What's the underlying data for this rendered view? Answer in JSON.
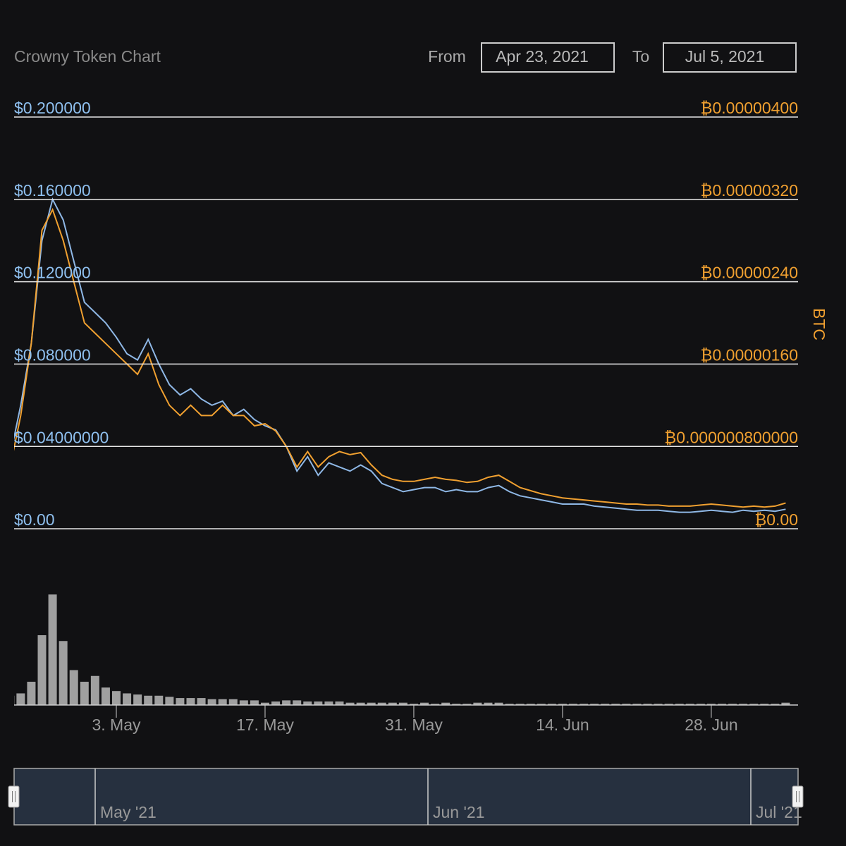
{
  "chart_data": {
    "type": "line",
    "title": "Crowny Token Chart",
    "range": {
      "from_label": "From",
      "from": "Apr 23, 2021",
      "to_label": "To",
      "to": "Jul 5, 2021"
    },
    "categories": [
      null,
      null,
      null,
      null,
      null,
      null,
      null,
      null,
      null,
      null,
      "3. May",
      null,
      null,
      null,
      null,
      null,
      null,
      null,
      null,
      null,
      null,
      null,
      null,
      null,
      "17. May",
      null,
      null,
      null,
      null,
      null,
      null,
      null,
      null,
      null,
      null,
      null,
      null,
      null,
      "31. May",
      null,
      null,
      null,
      null,
      null,
      null,
      null,
      null,
      null,
      null,
      null,
      null,
      null,
      "14. Jun",
      null,
      null,
      null,
      null,
      null,
      null,
      null,
      null,
      null,
      null,
      null,
      null,
      null,
      "28. Jun",
      null,
      null,
      null,
      null,
      null,
      null,
      null
    ],
    "series": [
      {
        "color": "#8fb8e6",
        "values": [
          0.035,
          0.06,
          0.09,
          0.14,
          0.16,
          0.15,
          0.13,
          0.11,
          0.105,
          0.1,
          0.093,
          0.085,
          0.082,
          0.092,
          0.08,
          0.07,
          0.065,
          0.068,
          0.063,
          0.06,
          0.062,
          0.055,
          0.058,
          0.053,
          0.05,
          0.048,
          0.04,
          0.028,
          0.035,
          0.026,
          0.032,
          0.03,
          0.028,
          0.031,
          0.028,
          0.022,
          0.02,
          0.018,
          0.019,
          0.02,
          0.02,
          0.018,
          0.019,
          0.018,
          0.018,
          0.02,
          0.021,
          0.018,
          0.016,
          0.015,
          0.014,
          0.013,
          0.012,
          0.012,
          0.012,
          0.011,
          0.0105,
          0.01,
          0.0095,
          0.009,
          0.009,
          0.009,
          0.0085,
          0.008,
          0.008,
          0.0085,
          0.009,
          0.0085,
          0.008,
          0.009,
          0.0085,
          0.009,
          0.0085,
          0.0095
        ]
      },
      {
        "color": "#f0a030",
        "axis": "y2",
        "values": [
          6e-07,
          1.1e-06,
          1.8e-06,
          2.9e-06,
          3.1e-06,
          2.8e-06,
          2.4e-06,
          2e-06,
          1.9e-06,
          1.8e-06,
          1.7e-06,
          1.6e-06,
          1.5e-06,
          1.7e-06,
          1.4e-06,
          1.2e-06,
          1.1e-06,
          1.2e-06,
          1.1e-06,
          1.1e-06,
          1.2e-06,
          1.1e-06,
          1.1e-06,
          1e-06,
          1.02e-06,
          9.5e-07,
          8e-07,
          6e-07,
          7.5e-07,
          6e-07,
          7e-07,
          7.5e-07,
          7.2e-07,
          7.4e-07,
          6.2e-07,
          5.2e-07,
          4.8e-07,
          4.6e-07,
          4.6e-07,
          4.8e-07,
          5e-07,
          4.8e-07,
          4.7e-07,
          4.5e-07,
          4.6e-07,
          5e-07,
          5.2e-07,
          4.6e-07,
          4e-07,
          3.7e-07,
          3.4e-07,
          3.2e-07,
          3e-07,
          2.9e-07,
          2.8e-07,
          2.7e-07,
          2.6e-07,
          2.5e-07,
          2.4e-07,
          2.4e-07,
          2.3e-07,
          2.3e-07,
          2.2e-07,
          2.2e-07,
          2.2e-07,
          2.3e-07,
          2.4e-07,
          2.3e-07,
          2.2e-07,
          2.1e-07,
          2.2e-07,
          2.1e-07,
          2.2e-07,
          2.5e-07
        ]
      }
    ],
    "ylim": [
      0,
      0.2
    ],
    "yticks": [
      {
        "value": 0.2,
        "label": "$0.200000"
      },
      {
        "value": 0.16,
        "label": "$0.160000"
      },
      {
        "value": 0.12,
        "label": "$0.120000"
      },
      {
        "value": 0.08,
        "label": "$0.080000"
      },
      {
        "value": 0.04,
        "label": "$0.04000000"
      },
      {
        "value": 0,
        "label": "$0.00"
      }
    ],
    "y2lim": [
      0,
      4e-06
    ],
    "y2ticks": [
      {
        "value": 4e-06,
        "label": "₿0.00000400"
      },
      {
        "value": 3.2e-06,
        "label": "₿0.00000320"
      },
      {
        "value": 2.4e-06,
        "label": "₿0.00000240"
      },
      {
        "value": 1.6e-06,
        "label": "₿0.00000160"
      },
      {
        "value": 8e-07,
        "label": "₿0.000000800000"
      },
      {
        "value": 0,
        "label": "₿0.00"
      }
    ],
    "y2label": "BTC",
    "grid": true,
    "volume": {
      "color": "#a0a0a0",
      "ylim": [
        0,
        100
      ],
      "values": [
        8,
        10,
        20,
        60,
        95,
        55,
        30,
        20,
        25,
        15,
        12,
        10,
        9,
        8,
        8,
        7,
        6,
        6,
        6,
        5,
        5,
        5,
        4,
        4,
        2,
        3,
        4,
        4,
        3,
        3,
        3,
        3,
        2,
        2,
        2,
        2,
        2,
        2,
        1,
        2,
        1,
        2,
        1,
        1,
        2,
        2,
        2,
        1,
        1,
        1,
        1,
        1,
        1,
        1,
        1,
        1,
        1,
        1,
        1,
        1,
        1,
        1,
        1,
        1,
        1,
        1,
        1,
        1,
        1,
        1,
        1,
        1,
        1,
        2
      ]
    },
    "navigator": {
      "labels": [
        "May '21",
        "Jun '21",
        "Jul '21"
      ]
    }
  }
}
